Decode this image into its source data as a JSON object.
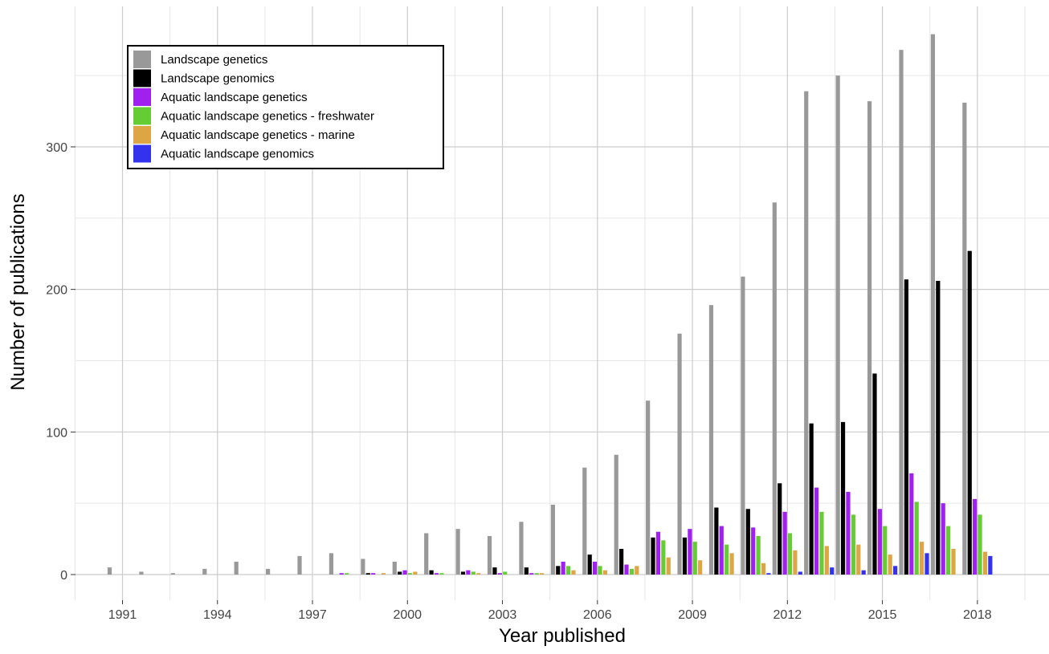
{
  "chart_data": {
    "type": "bar",
    "xlabel": "Year published",
    "ylabel": "Number of publications",
    "ylim": [
      -20,
      400
    ],
    "yticks": [
      0,
      100,
      200,
      300
    ],
    "x_tick_labels": [
      "1991",
      "1994",
      "1997",
      "2000",
      "2003",
      "2006",
      "2009",
      "2012",
      "2015",
      "2018"
    ],
    "grid": true,
    "legend_position": "top-left",
    "categories": [
      1991,
      1992,
      1993,
      1994,
      1995,
      1996,
      1997,
      1998,
      1999,
      2000,
      2001,
      2002,
      2003,
      2004,
      2005,
      2006,
      2007,
      2008,
      2009,
      2010,
      2011,
      2012,
      2013,
      2014,
      2015,
      2016,
      2017,
      2018
    ],
    "series": [
      {
        "name": "Landscape genetics",
        "color": "#999999",
        "values": [
          5,
          2,
          1,
          4,
          9,
          4,
          13,
          15,
          11,
          9,
          29,
          32,
          27,
          37,
          49,
          75,
          84,
          122,
          169,
          189,
          209,
          261,
          339,
          350,
          332,
          368,
          379,
          331
        ]
      },
      {
        "name": "Landscape genomics",
        "color": "#000000",
        "values": [
          0,
          0,
          0,
          0,
          0,
          0,
          0,
          0,
          1,
          2,
          3,
          2,
          5,
          5,
          6,
          14,
          18,
          26,
          26,
          47,
          46,
          64,
          106,
          107,
          141,
          207,
          206,
          227
        ]
      },
      {
        "name": "Aquatic landscape genetics",
        "color": "#A020F0",
        "values": [
          0,
          0,
          0,
          0,
          0,
          0,
          0,
          1,
          1,
          3,
          1,
          3,
          1,
          1,
          9,
          9,
          7,
          30,
          32,
          34,
          33,
          44,
          61,
          58,
          46,
          71,
          50,
          53
        ]
      },
      {
        "name": "Aquatic landscape genetics - freshwater",
        "color": "#66CC33",
        "values": [
          0,
          0,
          0,
          0,
          0,
          0,
          0,
          1,
          0,
          1,
          1,
          2,
          2,
          1,
          6,
          6,
          4,
          24,
          23,
          21,
          27,
          29,
          44,
          42,
          34,
          51,
          34,
          42
        ]
      },
      {
        "name": "Aquatic landscape genetics - marine",
        "color": "#DDA544",
        "values": [
          0,
          0,
          0,
          0,
          0,
          0,
          0,
          0,
          1,
          2,
          0,
          1,
          0,
          1,
          3,
          3,
          6,
          12,
          10,
          15,
          8,
          17,
          20,
          21,
          14,
          23,
          18,
          16
        ]
      },
      {
        "name": "Aquatic landscape genomics",
        "color": "#3333EE",
        "values": [
          0,
          0,
          0,
          0,
          0,
          0,
          0,
          0,
          0,
          0,
          0,
          0,
          0,
          0,
          0,
          0,
          0,
          0,
          0,
          0,
          1,
          2,
          5,
          3,
          6,
          15,
          0,
          13
        ]
      }
    ]
  }
}
